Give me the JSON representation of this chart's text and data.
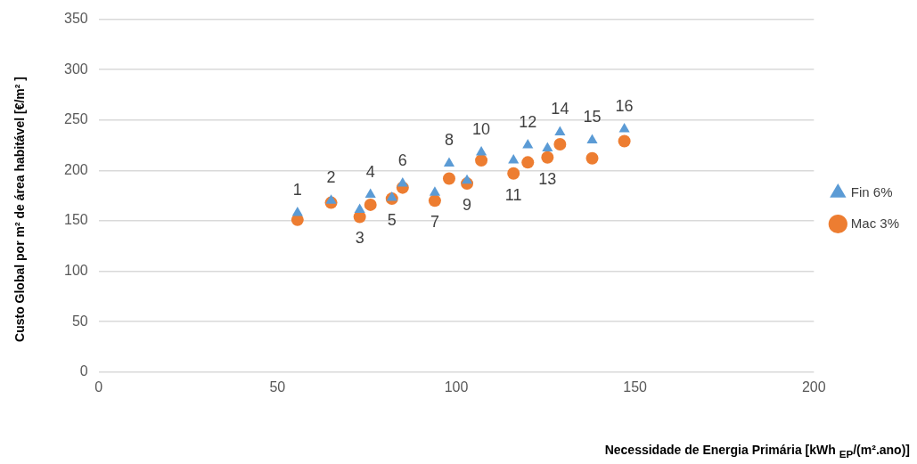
{
  "chart_data": {
    "type": "scatter",
    "xlabel": "Necessidade de Energia Primária [kWh $_{EP}$/(m².ano)]",
    "ylabel": "Custo Global por m² de área habitável [€/m² ]",
    "x": [
      55.6,
      65,
      73,
      76,
      82,
      85,
      94,
      98,
      103,
      107,
      116,
      120,
      125.5,
      129,
      138,
      147
    ],
    "series": [
      {
        "name": "Fin 6%",
        "color": "#5b9bd5",
        "marker": "triangle",
        "values": [
          158,
          170,
          161,
          176,
          173,
          187,
          178,
          207,
          190,
          218,
          210,
          225,
          222,
          238,
          230,
          241
        ]
      },
      {
        "name": "Mac 3%",
        "color": "#ed7d31",
        "marker": "circle",
        "values": [
          151,
          168,
          154,
          166,
          172,
          183,
          170,
          192,
          187,
          210,
          197,
          208,
          213,
          226,
          212,
          229
        ]
      }
    ],
    "xlim": [
      0,
      200
    ],
    "xticks": [
      0,
      50,
      100,
      150,
      200
    ],
    "ylim": [
      0,
      350
    ],
    "yticks": [
      0,
      50,
      100,
      150,
      200,
      250,
      300,
      350
    ],
    "grid": "y",
    "legend": "right",
    "annotations": [
      {
        "text": "1",
        "x": 55.6,
        "y": 158
      },
      {
        "text": "2",
        "x": 65,
        "y": 170
      },
      {
        "text": "3",
        "x": 73,
        "y": 154
      },
      {
        "text": "4",
        "x": 76,
        "y": 176
      },
      {
        "text": "5",
        "x": 82,
        "y": 172
      },
      {
        "text": "6",
        "x": 85,
        "y": 187
      },
      {
        "text": "7",
        "x": 94,
        "y": 170
      },
      {
        "text": "8",
        "x": 98,
        "y": 207
      },
      {
        "text": "9",
        "x": 103,
        "y": 187
      },
      {
        "text": "10",
        "x": 107,
        "y": 218
      },
      {
        "text": "11",
        "x": 116,
        "y": 197
      },
      {
        "text": "12",
        "x": 120,
        "y": 225
      },
      {
        "text": "13",
        "x": 125.5,
        "y": 213
      },
      {
        "text": "14",
        "x": 129,
        "y": 238
      },
      {
        "text": "15",
        "x": 138,
        "y": 230
      },
      {
        "text": "16",
        "x": 147,
        "y": 241
      }
    ]
  }
}
